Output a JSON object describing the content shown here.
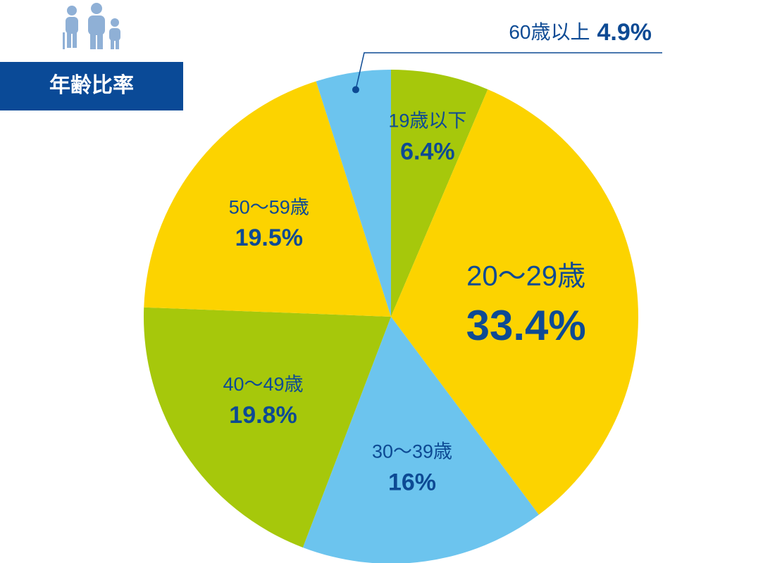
{
  "chart_data": {
    "type": "pie",
    "title": "年齢比率",
    "categories": [
      "19歳以下",
      "20～29歳",
      "30～39歳",
      "40～49歳",
      "50～59歳",
      "60歳以上"
    ],
    "values": [
      6.4,
      33.4,
      16,
      19.8,
      19.5,
      4.9
    ],
    "value_labels": [
      "6.4%",
      "33.4%",
      "16%",
      "19.8%",
      "19.5%",
      "4.9%"
    ],
    "colors": [
      "#a6c80b",
      "#fcd300",
      "#6cc4ee",
      "#a6c80b",
      "#fcd300",
      "#6cc4ee"
    ]
  }
}
